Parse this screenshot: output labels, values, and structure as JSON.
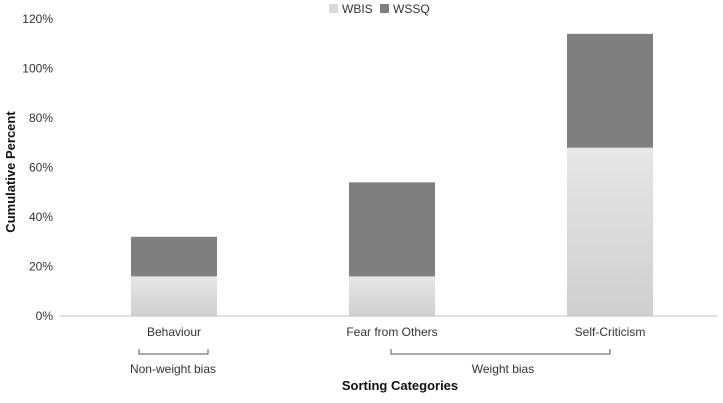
{
  "chart_data": {
    "type": "bar",
    "stacked": true,
    "categories": [
      "Behaviour",
      "Fear from Others",
      "Self-Criticism"
    ],
    "series": [
      {
        "name": "WBIS",
        "values": [
          16,
          16,
          68
        ],
        "color": "#d9d9d9"
      },
      {
        "name": "WSSQ",
        "values": [
          16,
          38,
          46
        ],
        "color": "#7f7f7f"
      }
    ],
    "yticks": [
      "0%",
      "20%",
      "40%",
      "60%",
      "80%",
      "100%",
      "120%"
    ],
    "ylim": [
      0,
      120
    ],
    "xlabel": "Sorting Categories",
    "ylabel": "Cumulative Percent",
    "legend_position": "top",
    "grid": false,
    "category_groups": [
      {
        "label": "Non-weight bias",
        "categories": [
          "Behaviour"
        ]
      },
      {
        "label": "Weight bias",
        "categories": [
          "Fear from Others",
          "Self-Criticism"
        ]
      }
    ]
  }
}
